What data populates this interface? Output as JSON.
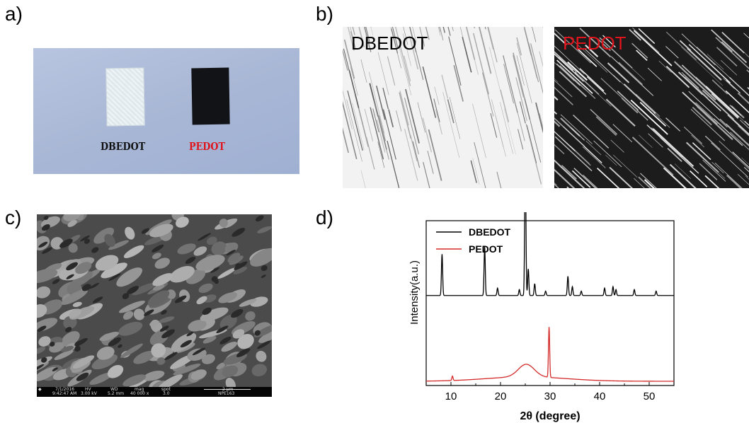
{
  "panels": {
    "a": {
      "label": "a)",
      "captions": {
        "dbedot": "DBEDOT",
        "pedot": "PEDOT"
      }
    },
    "b": {
      "label": "b)",
      "labels": {
        "dbedot": "DBEDOT",
        "pedot": "PEDOT"
      }
    },
    "c": {
      "label": "c)",
      "sem_info": {
        "date": "7/1/2016",
        "time": "9:42:47 AM",
        "hv_label": "HV",
        "hv": "3.00 kV",
        "wd_label": "WD",
        "wd": "5.2 mm",
        "mag_label": "mag",
        "mag": "40 000 x",
        "spot_label": "spot",
        "spot": "3.0",
        "scale": "2 µm",
        "id": "NPE163"
      }
    },
    "d": {
      "label": "d)"
    }
  },
  "colors": {
    "dbedot": "#000000",
    "pedot": "#d42a2a",
    "label_red": "#e0141c"
  },
  "chart_data": {
    "type": "line",
    "xlabel": "2θ (degree)",
    "ylabel": "Intensity(a.u.)",
    "xlim": [
      5,
      55
    ],
    "xticks": [
      10,
      20,
      30,
      40,
      50
    ],
    "legend": "top-left",
    "series": [
      {
        "name": "DBEDOT",
        "color": "#000000",
        "baseline": 0.58,
        "peaks": [
          [
            8.2,
            0.28
          ],
          [
            16.8,
            0.33
          ],
          [
            19.4,
            0.05
          ],
          [
            23.8,
            0.04
          ],
          [
            25.0,
            1.0
          ],
          [
            25.6,
            0.18
          ],
          [
            26.9,
            0.08
          ],
          [
            29.1,
            0.03
          ],
          [
            33.6,
            0.13
          ],
          [
            34.5,
            0.06
          ],
          [
            36.3,
            0.03
          ],
          [
            41.0,
            0.05
          ],
          [
            42.7,
            0.06
          ],
          [
            43.3,
            0.04
          ],
          [
            47.0,
            0.04
          ],
          [
            51.4,
            0.03
          ]
        ]
      },
      {
        "name": "PEDOT",
        "color": "#d42a2a",
        "baseline": 0.0,
        "hump": {
          "center": 25.2,
          "width": 1.6,
          "height": 0.085,
          "broad": 0.03
        },
        "peaks": [
          [
            10.3,
            0.03
          ],
          [
            29.8,
            0.34
          ]
        ]
      }
    ]
  }
}
